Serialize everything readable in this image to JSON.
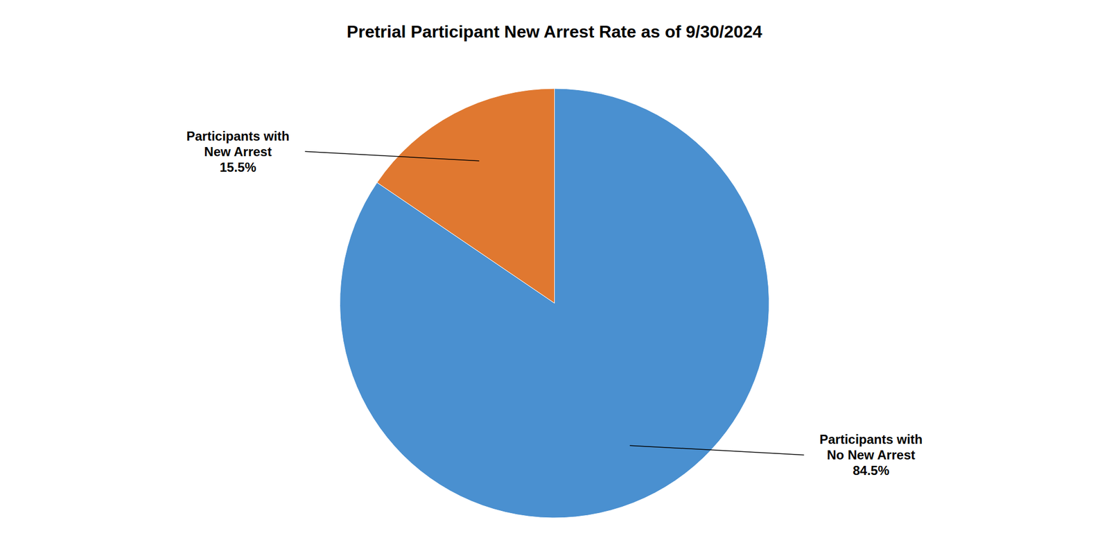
{
  "chart_data": {
    "type": "pie",
    "title": "Pretrial Participant New Arrest Rate as of 9/30/2024",
    "values": [
      15.5,
      84.5
    ],
    "value_labels": [
      "Participants with\nNew Arrest\n15.5%",
      "Participants with\nNo New Arrest\n84.5%"
    ],
    "colors": [
      "#E07830",
      "#4A90D0"
    ],
    "data_labels": true
  }
}
